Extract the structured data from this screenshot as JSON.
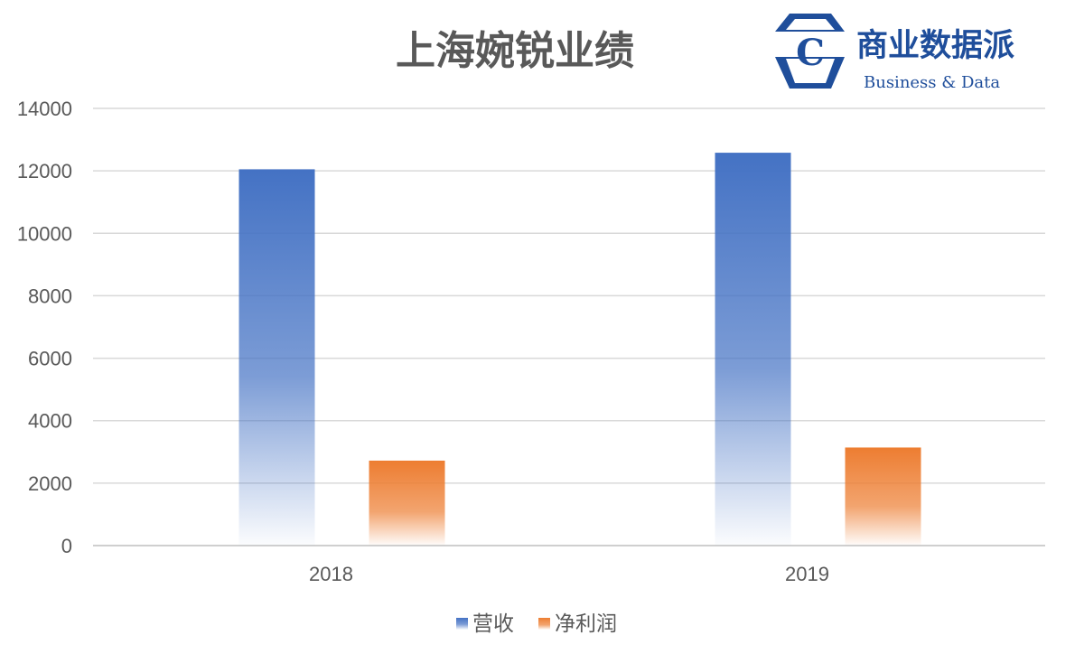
{
  "chart_data": {
    "type": "bar",
    "title": "上海婉锐业绩",
    "categories": [
      "2018",
      "2019"
    ],
    "series": [
      {
        "name": "营收",
        "values": [
          12050,
          12580
        ],
        "color": "#4472c4"
      },
      {
        "name": "净利润",
        "values": [
          2720,
          3140
        ],
        "color": "#ed7d31"
      }
    ],
    "ylim": [
      0,
      14000
    ],
    "yticks": [
      0,
      2000,
      4000,
      6000,
      8000,
      10000,
      12000,
      14000
    ],
    "grid": true,
    "legend_position": "bottom",
    "xlabel": "",
    "ylabel": ""
  },
  "logo": {
    "icon": "c-hexagon-logo-icon",
    "icon_letter": "C",
    "name_cn": "商业数据派",
    "name_en": "Business & Data"
  }
}
